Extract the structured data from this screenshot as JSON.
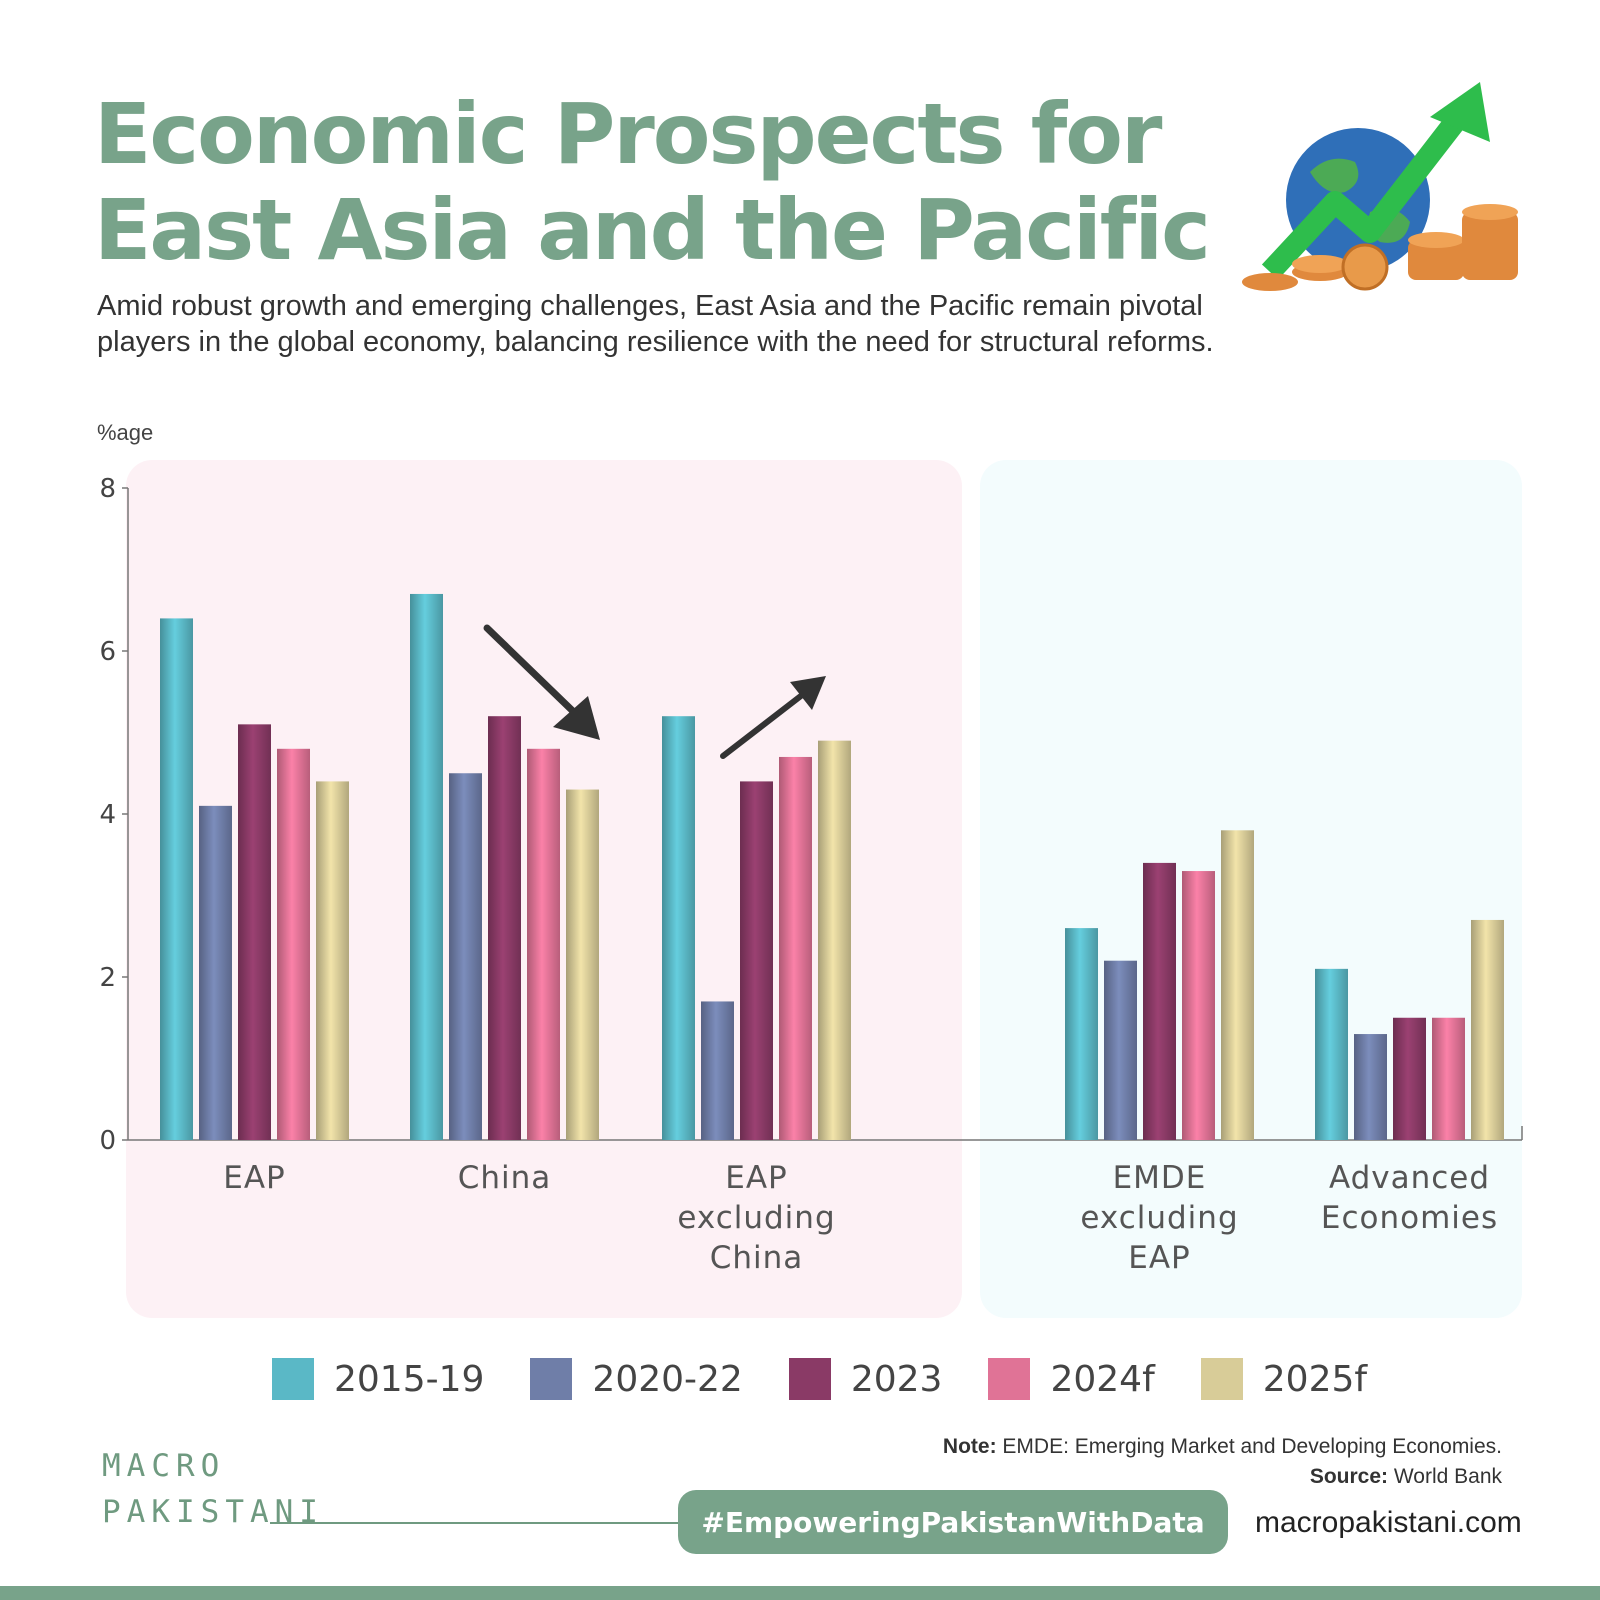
{
  "header": {
    "title": "Economic Prospects for East Asia and the Pacific",
    "subtitle": "Amid robust growth and emerging challenges, East Asia and the Pacific remain pivotal players in the global economy, balancing resilience with the need for structural reforms."
  },
  "chart_data": {
    "type": "bar",
    "ylabel": "%age",
    "ylim": [
      0,
      8
    ],
    "yticks": [
      "0",
      "2",
      "4",
      "6",
      "8"
    ],
    "categories": [
      "EAP",
      "China",
      "EAP excluding China",
      "EMDE excluding EAP",
      "Advanced Economies"
    ],
    "series": [
      {
        "name": "2015-19",
        "color": "#5ab8c6",
        "values": [
          6.4,
          6.7,
          5.2,
          2.6,
          2.1
        ]
      },
      {
        "name": "2020-22",
        "color": "#6f7ea8",
        "values": [
          4.1,
          4.5,
          1.7,
          2.2,
          1.3
        ]
      },
      {
        "name": "2023",
        "color": "#8a3a66",
        "values": [
          5.1,
          5.2,
          4.4,
          3.4,
          1.5
        ]
      },
      {
        "name": "2024f",
        "color": "#e07396",
        "values": [
          4.8,
          4.8,
          4.7,
          3.3,
          1.5
        ]
      },
      {
        "name": "2025f",
        "color": "#d8cc98",
        "values": [
          4.4,
          4.3,
          4.9,
          3.8,
          2.7
        ]
      }
    ],
    "legend_position": "bottom",
    "grid": false
  },
  "footer": {
    "note_label": "Note:",
    "note_text": " EMDE: Emerging Market and Developing Economies.",
    "source_label": "Source:",
    "source_text": " World Bank",
    "logo_line1": "MACRO",
    "logo_line2": "PAKISTANI",
    "hashtag": "#EmpoweringPakistanWithData",
    "website": "macropakistani.com"
  },
  "colors": {
    "brand_green": "#78a38a",
    "pink_panel": "#fdf1f5",
    "blue_panel": "#f3fcfd"
  },
  "icons": [
    "globe-growth-illustration",
    "down-trend-arrow-icon",
    "up-trend-arrow-icon"
  ]
}
